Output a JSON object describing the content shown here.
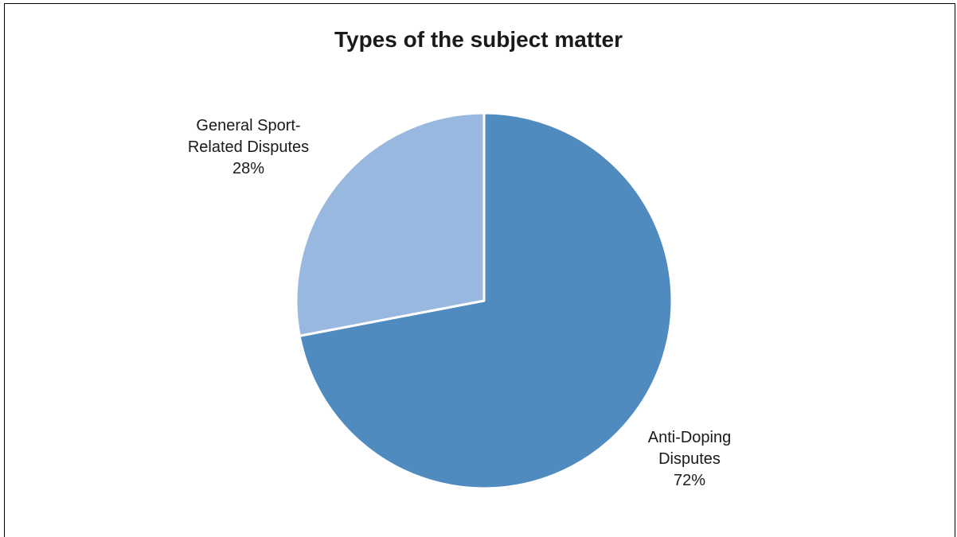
{
  "chart_data": {
    "type": "pie",
    "title": "Types of the subject matter",
    "slices": [
      {
        "name_lines": [
          "Anti-Doping",
          "Disputes"
        ],
        "percent_label": "72%",
        "value": 72,
        "color": "#4F8BBE"
      },
      {
        "name_lines": [
          "General Sport-",
          "Related Disputes"
        ],
        "percent_label": "28%",
        "value": 28,
        "color": "#99B8DF"
      }
    ],
    "start_angle": "12 o'clock",
    "direction": "clockwise",
    "legend": "none",
    "slice_border_color": "#FFFFFF"
  }
}
